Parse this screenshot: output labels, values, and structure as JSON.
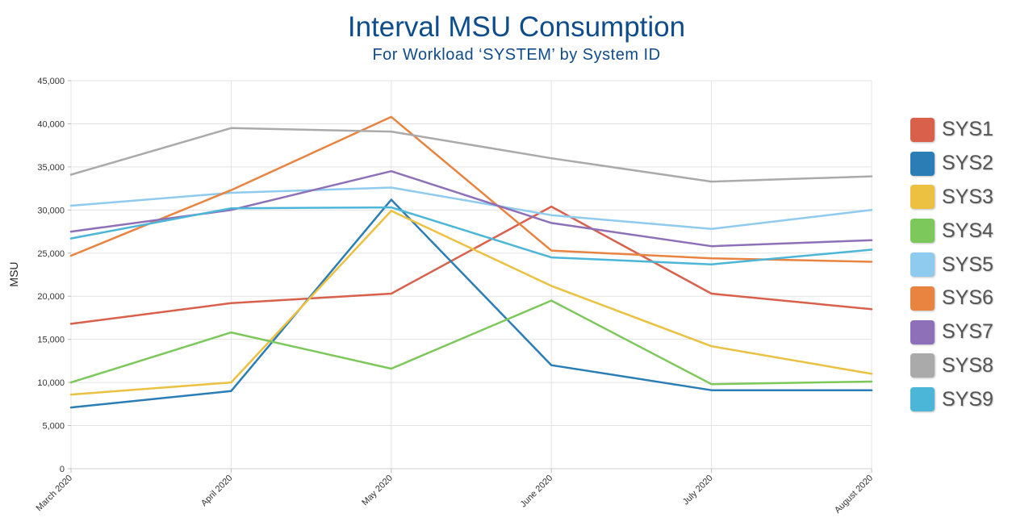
{
  "chart_data": {
    "type": "line",
    "title": "Interval MSU Consumption",
    "subtitle": "For Workload ‘SYSTEM’ by System ID",
    "ylabel": "MSU",
    "xlabel": "",
    "ylim": [
      0,
      45000
    ],
    "yticks": [
      0,
      5000,
      10000,
      15000,
      20000,
      25000,
      30000,
      35000,
      40000,
      45000
    ],
    "ytick_labels": [
      "0",
      "5,000",
      "10,000",
      "15,000",
      "20,000",
      "25,000",
      "30,000",
      "35,000",
      "40,000",
      "45,000"
    ],
    "categories": [
      "March 2020",
      "April 2020",
      "May 2020",
      "June 2020",
      "July 2020",
      "August 2020"
    ],
    "grid": true,
    "legend_position": "right",
    "series": [
      {
        "name": "SYS1",
        "color": "#d9604a",
        "values": [
          16800,
          19200,
          20300,
          30400,
          20300,
          18500
        ]
      },
      {
        "name": "SYS2",
        "color": "#2a7db5",
        "values": [
          7100,
          9000,
          31200,
          12000,
          9100,
          9100
        ]
      },
      {
        "name": "SYS3",
        "color": "#ecc040",
        "values": [
          8600,
          10000,
          29900,
          21200,
          14200,
          11000
        ]
      },
      {
        "name": "SYS4",
        "color": "#7cc85a",
        "values": [
          10000,
          15800,
          11600,
          19500,
          9800,
          10100
        ]
      },
      {
        "name": "SYS5",
        "color": "#8ecbef",
        "values": [
          30500,
          32000,
          32600,
          29400,
          27800,
          30000
        ]
      },
      {
        "name": "SYS6",
        "color": "#e88440",
        "values": [
          24700,
          32300,
          40800,
          25300,
          24400,
          24000
        ]
      },
      {
        "name": "SYS7",
        "color": "#8e70b8",
        "values": [
          27500,
          30000,
          34500,
          28500,
          25800,
          26500
        ]
      },
      {
        "name": "SYS8",
        "color": "#aaaaaa",
        "values": [
          34100,
          39500,
          39100,
          36000,
          33300,
          33900
        ]
      },
      {
        "name": "SYS9",
        "color": "#4cb6d8",
        "values": [
          26700,
          30200,
          30300,
          24500,
          23700,
          25400
        ]
      }
    ]
  }
}
